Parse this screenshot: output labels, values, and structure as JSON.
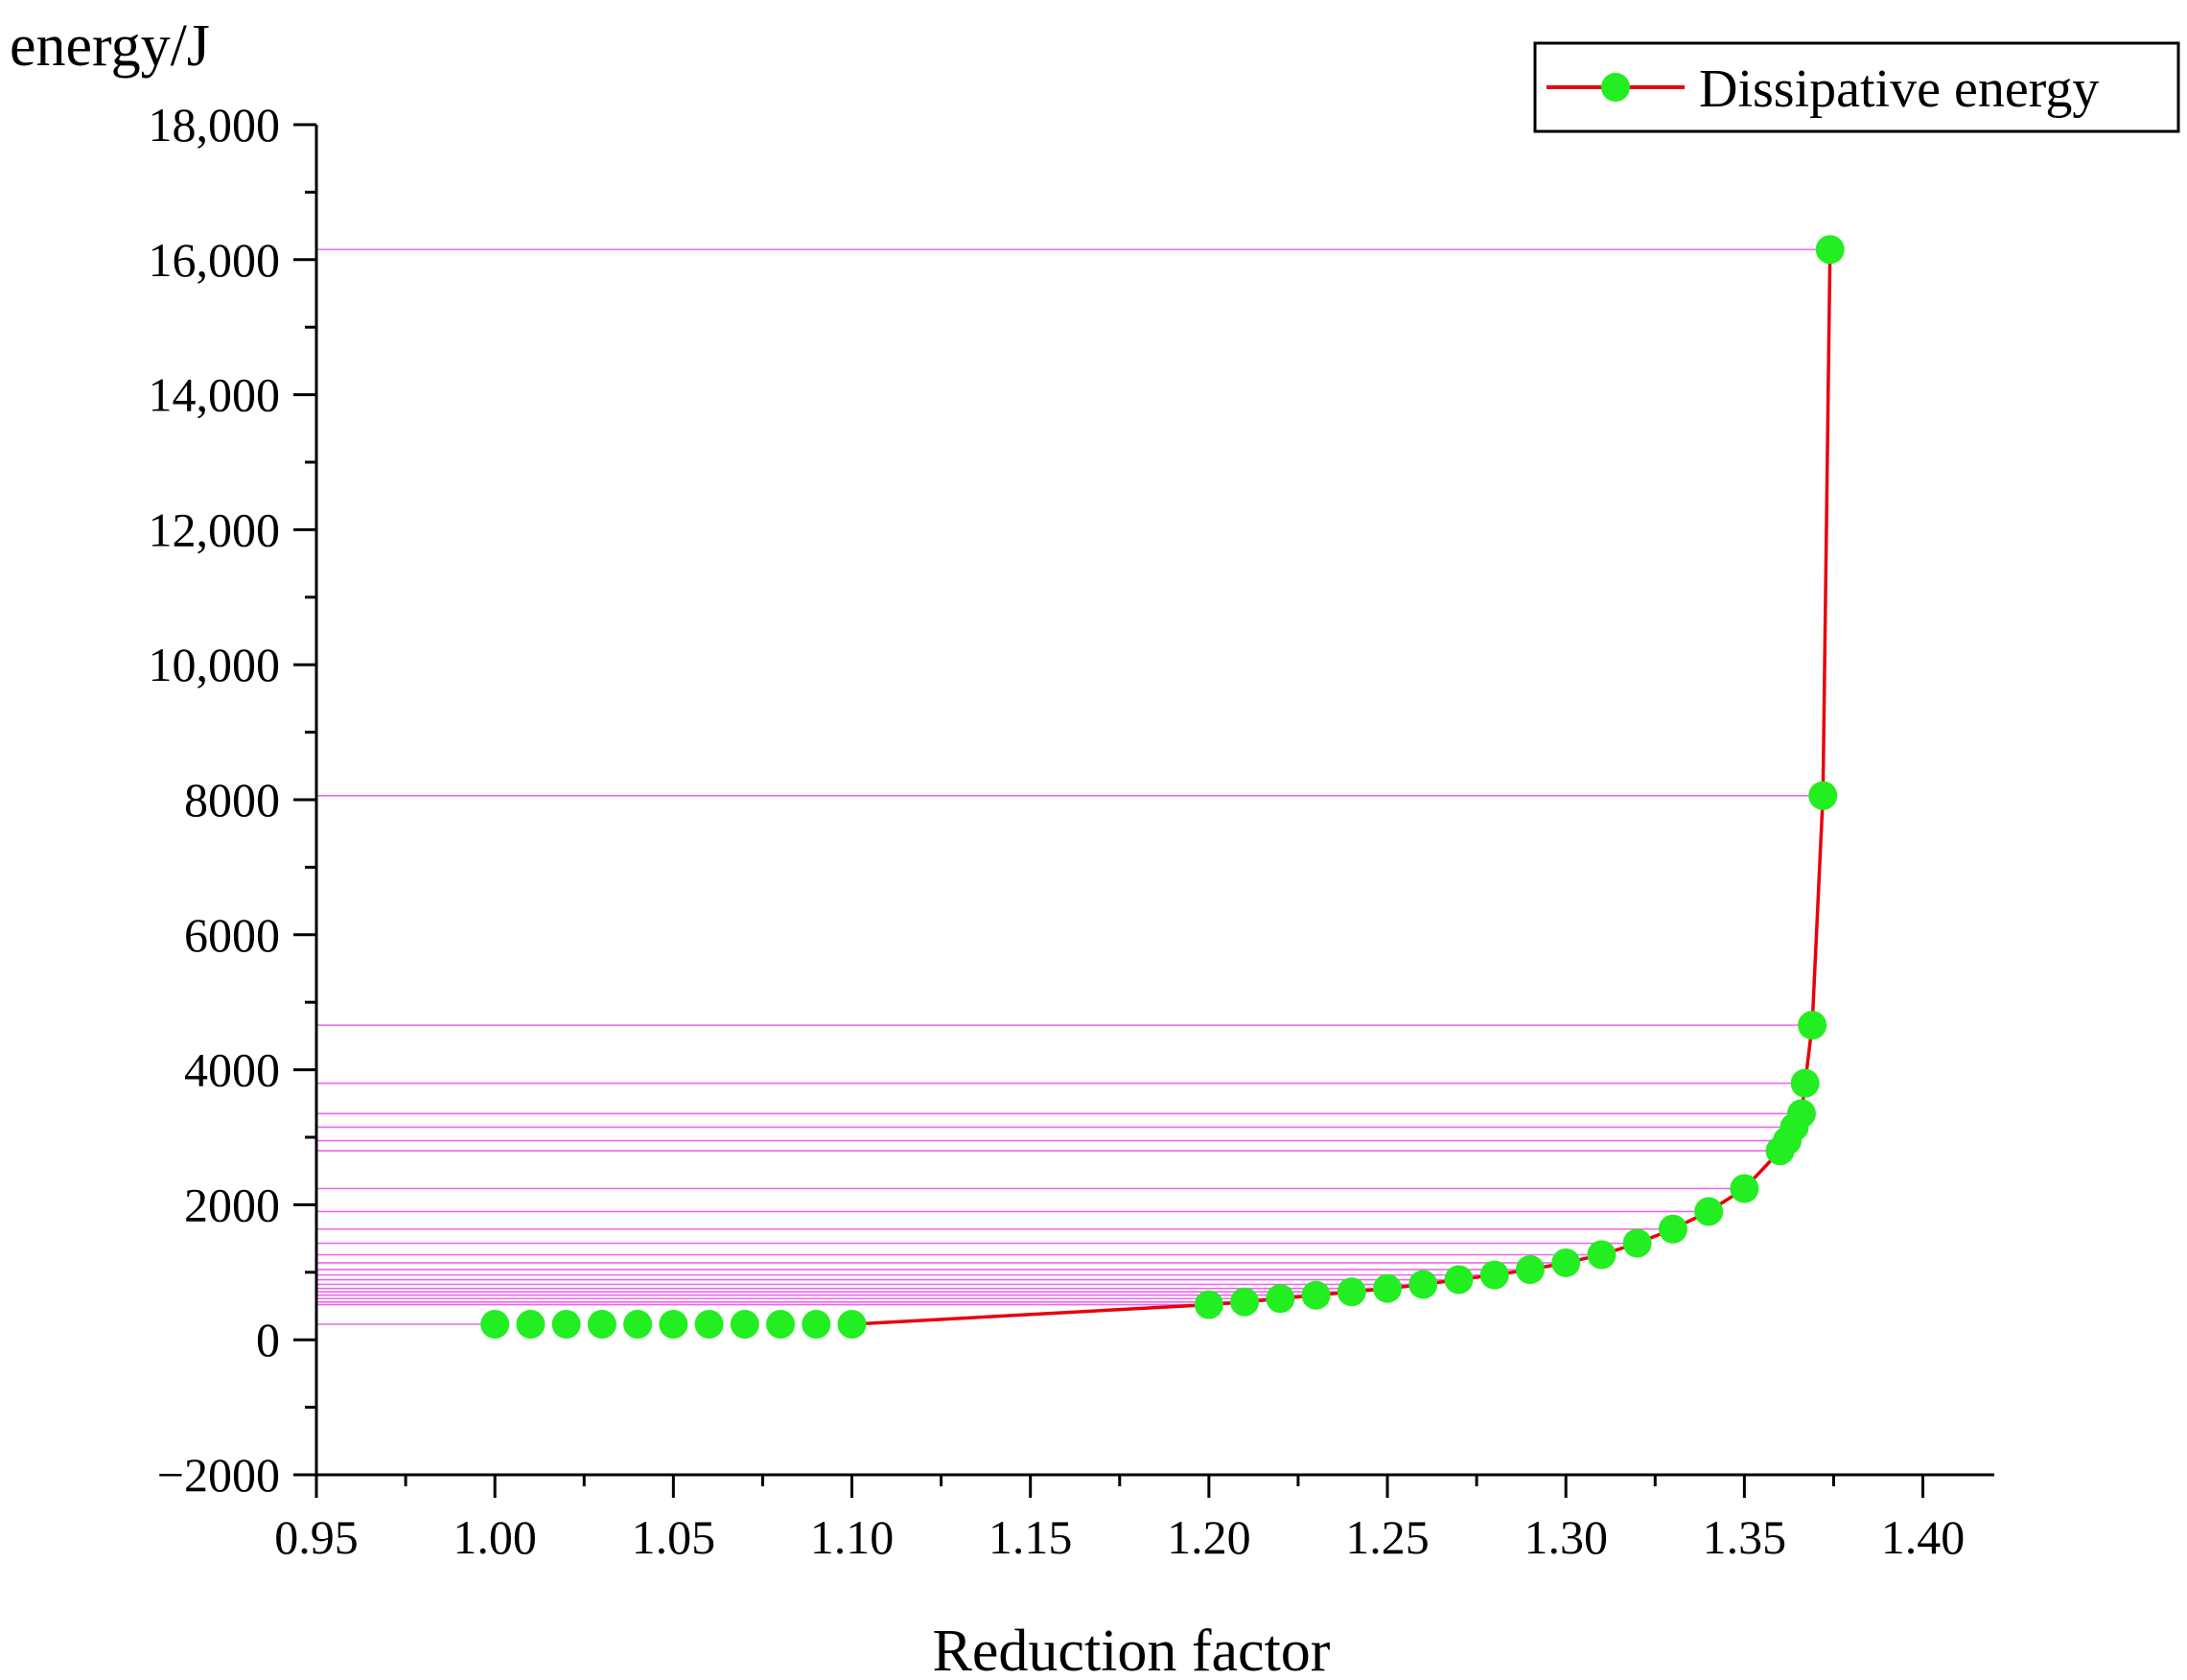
{
  "chart_data": {
    "type": "line",
    "title": "",
    "xlabel": "Reduction factor",
    "ylabel": "energy/J",
    "xlim": [
      0.95,
      1.42
    ],
    "ylim": [
      -2000,
      18000
    ],
    "x_ticks": [
      0.95,
      1.0,
      1.05,
      1.1,
      1.15,
      1.2,
      1.25,
      1.3,
      1.35,
      1.4
    ],
    "x_tick_labels": [
      "0.95",
      "1.00",
      "1.05",
      "1.10",
      "1.15",
      "1.20",
      "1.25",
      "1.30",
      "1.35",
      "1.40"
    ],
    "y_ticks": [
      -2000,
      0,
      2000,
      4000,
      6000,
      8000,
      10000,
      12000,
      14000,
      16000,
      18000
    ],
    "y_tick_labels": [
      "−2000",
      "0",
      "2000",
      "4000",
      "6000",
      "8000",
      "10,000",
      "12,000",
      "14,000",
      "16,000",
      "18,000"
    ],
    "grid": false,
    "legend_position": "top-right",
    "colors": {
      "line": "#e8000b",
      "marker": "#22ee22",
      "guide": "#ee66ee"
    },
    "series": [
      {
        "name": "Dissipative energy",
        "x": [
          1.0,
          1.01,
          1.02,
          1.03,
          1.04,
          1.05,
          1.06,
          1.07,
          1.08,
          1.09,
          1.1,
          1.2,
          1.21,
          1.22,
          1.23,
          1.24,
          1.25,
          1.26,
          1.27,
          1.28,
          1.29,
          1.3,
          1.31,
          1.32,
          1.33,
          1.34,
          1.35,
          1.36,
          1.362,
          1.364,
          1.366,
          1.367,
          1.369,
          1.372,
          1.374
        ],
        "y": [
          230,
          230,
          230,
          230,
          230,
          230,
          230,
          230,
          230,
          230,
          230,
          520,
          560,
          610,
          660,
          710,
          760,
          820,
          890,
          960,
          1040,
          1140,
          1260,
          1430,
          1640,
          1900,
          2240,
          2800,
          2950,
          3150,
          3350,
          3800,
          4660,
          8060,
          16150
        ]
      }
    ]
  }
}
